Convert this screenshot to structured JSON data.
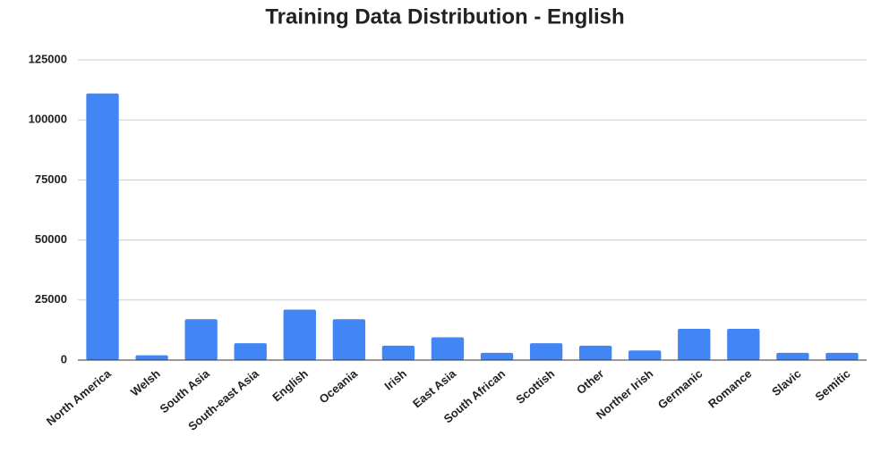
{
  "chart_data": {
    "type": "bar",
    "title": "Training Data Distribution - English",
    "categories": [
      "North America",
      "Welsh",
      "South Asia",
      "South-east Asia",
      "English",
      "Oceania",
      "Irish",
      "East Asia",
      "South African",
      "Scottish",
      "Other",
      "Norther Irish",
      "Germanic",
      "Romance",
      "Slavic",
      "Semitic"
    ],
    "values": [
      111000,
      2000,
      17000,
      7000,
      21000,
      17000,
      6000,
      9500,
      3000,
      7000,
      6000,
      4000,
      13000,
      13000,
      3000,
      3000
    ],
    "color": "#4285f4",
    "ylim": [
      0,
      125000
    ],
    "yticks": [
      0,
      25000,
      50000,
      75000,
      100000,
      125000
    ],
    "grid": true
  }
}
